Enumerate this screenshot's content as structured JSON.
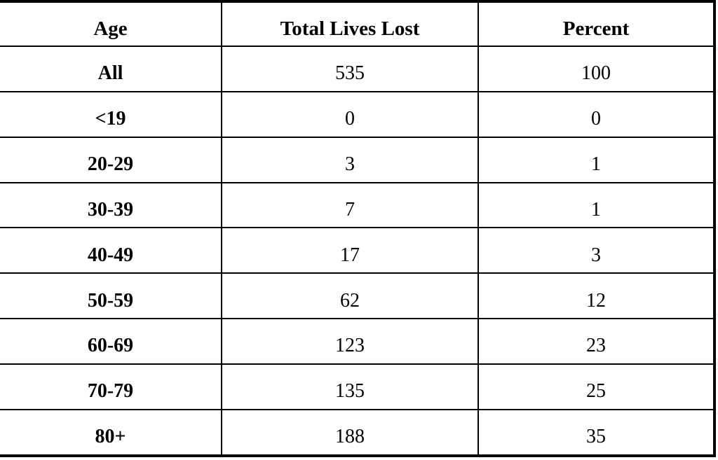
{
  "table": {
    "columns": [
      "Age",
      "Total Lives Lost",
      "Percent"
    ],
    "rows": [
      [
        "All",
        "535",
        "100"
      ],
      [
        "<19",
        "0",
        "0"
      ],
      [
        "20-29",
        "3",
        "1"
      ],
      [
        "30-39",
        "7",
        "1"
      ],
      [
        "40-49",
        "17",
        "3"
      ],
      [
        "50-59",
        "62",
        "12"
      ],
      [
        "60-69",
        "123",
        "23"
      ],
      [
        "70-79",
        "135",
        "25"
      ],
      [
        "80+",
        "188",
        "35"
      ]
    ]
  },
  "colors": {
    "border": "#000000",
    "text": "#000000",
    "background": "#ffffff"
  },
  "chart_data": {
    "type": "table",
    "columns": [
      "Age",
      "Total Lives Lost",
      "Percent"
    ],
    "rows": [
      {
        "age": "All",
        "total_lives_lost": 535,
        "percent": 100
      },
      {
        "age": "<19",
        "total_lives_lost": 0,
        "percent": 0
      },
      {
        "age": "20-29",
        "total_lives_lost": 3,
        "percent": 1
      },
      {
        "age": "30-39",
        "total_lives_lost": 7,
        "percent": 1
      },
      {
        "age": "40-49",
        "total_lives_lost": 17,
        "percent": 3
      },
      {
        "age": "50-59",
        "total_lives_lost": 62,
        "percent": 12
      },
      {
        "age": "60-69",
        "total_lives_lost": 123,
        "percent": 23
      },
      {
        "age": "70-79",
        "total_lives_lost": 135,
        "percent": 25
      },
      {
        "age": "80+",
        "total_lives_lost": 188,
        "percent": 35
      }
    ]
  }
}
